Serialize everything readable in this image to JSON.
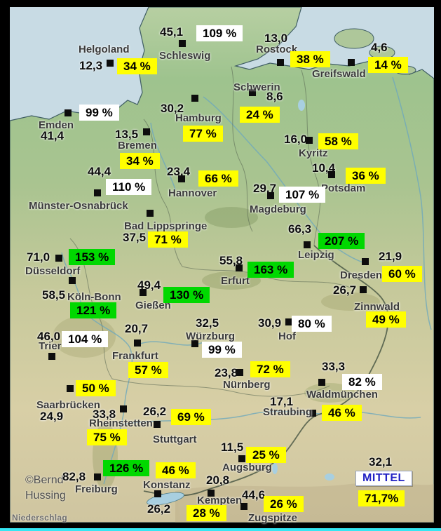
{
  "title_caption": "Niederschlag",
  "credits": {
    "line1": "©Bernd",
    "line2": "Hussing"
  },
  "summary": {
    "value": "32,1",
    "label": "MITTEL",
    "percent": "71,7%"
  },
  "colors": {
    "yellow": "#ffff00",
    "green": "#00d800",
    "white": "#ffffff"
  },
  "map_colors": {
    "sea": "#c8dbe4",
    "land_north": "#9dc18c",
    "land_south": "#d8cda6",
    "frame": "#000000",
    "bottom_strip": "#35e6f2"
  },
  "stations": [
    {
      "name": "Helgoland",
      "value": "12,3",
      "percent": "34 %",
      "color": "yellow",
      "pos": {
        "value": [
          113,
          84
        ],
        "marker": [
          152,
          85
        ],
        "label": [
          112,
          62
        ],
        "percent": [
          167,
          83
        ]
      }
    },
    {
      "name": "Schleswig",
      "value": "45,1",
      "percent": "109 %",
      "color": "white",
      "pos": {
        "value": [
          228,
          36
        ],
        "marker": [
          255,
          57
        ],
        "label": [
          227,
          71
        ],
        "percent": [
          280,
          36
        ]
      }
    },
    {
      "name": "Rostock",
      "value": "13,0",
      "percent": "38 %",
      "color": "yellow",
      "pos": {
        "value": [
          377,
          45
        ],
        "marker": [
          395,
          84
        ],
        "label": [
          365,
          62
        ],
        "percent": [
          414,
          73
        ]
      }
    },
    {
      "name": "Greifswald",
      "value": "4,6",
      "percent": "14 %",
      "color": "yellow",
      "pos": {
        "value": [
          529,
          58
        ],
        "marker": [
          496,
          84
        ],
        "label": [
          445,
          97
        ],
        "percent": [
          525,
          81
        ]
      }
    },
    {
      "name": "Schwerin",
      "value": "8,6",
      "percent": "24 %",
      "color": "yellow",
      "pos": {
        "value": [
          380,
          128
        ],
        "marker": [
          355,
          127
        ],
        "label": [
          333,
          116
        ],
        "percent": [
          342,
          152
        ]
      }
    },
    {
      "name": "Emden",
      "value": "41,4",
      "percent": "99 %",
      "color": "white",
      "pos": {
        "value": [
          58,
          184
        ],
        "marker": [
          92,
          156
        ],
        "label": [
          55,
          170
        ],
        "percent": [
          113,
          149
        ]
      }
    },
    {
      "name": "Hamburg",
      "value": "30,2",
      "percent": "77 %",
      "color": "yellow",
      "pos": {
        "value": [
          229,
          145
        ],
        "marker": [
          273,
          135
        ],
        "label": [
          250,
          160
        ],
        "percent": [
          261,
          179
        ]
      }
    },
    {
      "name": "Bremen",
      "value": "13,5",
      "percent": "34 %",
      "color": "yellow",
      "pos": {
        "value": [
          164,
          182
        ],
        "marker": [
          204,
          183
        ],
        "label": [
          168,
          199
        ],
        "percent": [
          171,
          218
        ]
      }
    },
    {
      "name": "Kyritz",
      "value": "16,0",
      "percent": "58 %",
      "color": "yellow",
      "pos": {
        "value": [
          405,
          189
        ],
        "marker": [
          436,
          195
        ],
        "label": [
          426,
          210
        ],
        "percent": [
          454,
          190
        ]
      }
    },
    {
      "name": "Münster-Osnabrück",
      "value": "44,4",
      "percent": "110 %",
      "color": "white",
      "pos": {
        "value": [
          125,
          235
        ],
        "marker": [
          134,
          270
        ],
        "label": [
          41,
          285
        ],
        "percent": [
          151,
          255
        ]
      }
    },
    {
      "name": "Hannover",
      "value": "23,4",
      "percent": "66 %",
      "color": "yellow",
      "pos": {
        "value": [
          238,
          235
        ],
        "marker": [
          254,
          250
        ],
        "label": [
          240,
          267
        ],
        "percent": [
          283,
          243
        ]
      }
    },
    {
      "name": "Potsdam",
      "value": "10,4",
      "percent": "36 %",
      "color": "yellow",
      "pos": {
        "value": [
          445,
          230
        ],
        "marker": [
          468,
          244
        ],
        "label": [
          458,
          260
        ],
        "percent": [
          493,
          239
        ]
      }
    },
    {
      "name": "Magdeburg",
      "value": "29,7",
      "percent": "107 %",
      "color": "white",
      "pos": {
        "value": [
          361,
          259
        ],
        "marker": [
          381,
          274
        ],
        "label": [
          356,
          290
        ],
        "percent": [
          398,
          266
        ]
      }
    },
    {
      "name": "Bad Lippspringe",
      "value": "37,5",
      "percent": "71 %",
      "color": "yellow",
      "pos": {
        "value": [
          175,
          329
        ],
        "marker": [
          209,
          299
        ],
        "label": [
          177,
          314
        ],
        "percent": [
          211,
          330
        ]
      }
    },
    {
      "name": "Leipzig",
      "value": "66,3",
      "percent": "207 %",
      "color": "green",
      "pos": {
        "value": [
          411,
          317
        ],
        "marker": [
          433,
          344
        ],
        "label": [
          425,
          355
        ],
        "percent": [
          454,
          332
        ]
      }
    },
    {
      "name": "Dresden",
      "value": "21,9",
      "percent": "60 %",
      "color": "yellow",
      "pos": {
        "value": [
          540,
          356
        ],
        "marker": [
          516,
          368
        ],
        "label": [
          485,
          384
        ],
        "percent": [
          545,
          379
        ]
      }
    },
    {
      "name": "Düsseldorf",
      "value": "71,0",
      "percent": "153 %",
      "color": "green",
      "pos": {
        "value": [
          38,
          357
        ],
        "marker": [
          79,
          363
        ],
        "label": [
          36,
          378
        ],
        "percent": [
          98,
          355
        ]
      }
    },
    {
      "name": "Erfurt",
      "value": "55,8",
      "percent": "163 %",
      "color": "green",
      "pos": {
        "value": [
          313,
          362
        ],
        "marker": [
          336,
          377
        ],
        "label": [
          315,
          392
        ],
        "percent": [
          353,
          373
        ]
      }
    },
    {
      "name": "Köln-Bonn",
      "value": "58,5",
      "percent": "121 %",
      "color": "green",
      "pos": {
        "value": [
          60,
          411
        ],
        "marker": [
          98,
          395
        ],
        "label": [
          96,
          415
        ],
        "percent": [
          100,
          431
        ]
      }
    },
    {
      "name": "Gießen",
      "value": "49,4",
      "percent": "130 %",
      "color": "green",
      "pos": {
        "value": [
          196,
          397
        ],
        "marker": [
          199,
          412
        ],
        "label": [
          193,
          427
        ],
        "percent": [
          233,
          409
        ]
      }
    },
    {
      "name": "Zinnwald",
      "value": "26,7",
      "percent": "49 %",
      "color": "yellow",
      "pos": {
        "value": [
          475,
          404
        ],
        "marker": [
          513,
          408
        ],
        "label": [
          505,
          429
        ],
        "percent": [
          522,
          444
        ]
      }
    },
    {
      "name": "Würzburg",
      "value": "32,5",
      "percent": "99 %",
      "color": "white",
      "pos": {
        "value": [
          279,
          451
        ],
        "marker": [
          273,
          485
        ],
        "label": [
          265,
          471
        ],
        "percent": [
          288,
          487
        ]
      }
    },
    {
      "name": "Hof",
      "value": "30,9",
      "percent": "80 %",
      "color": "white",
      "pos": {
        "value": [
          368,
          451
        ],
        "marker": [
          407,
          454
        ],
        "label": [
          397,
          471
        ],
        "percent": [
          416,
          450
        ]
      }
    },
    {
      "name": "Trier",
      "value": "46,0",
      "percent": "104 %",
      "color": "white",
      "pos": {
        "value": [
          53,
          470
        ],
        "marker": [
          69,
          503
        ],
        "label": [
          55,
          485
        ],
        "percent": [
          88,
          472
        ]
      }
    },
    {
      "name": "Frankfurt",
      "value": "20,7",
      "percent": "57 %",
      "color": "yellow",
      "pos": {
        "value": [
          178,
          459
        ],
        "marker": [
          191,
          484
        ],
        "label": [
          160,
          499
        ],
        "percent": [
          183,
          516
        ]
      }
    },
    {
      "name": "Nürnberg",
      "value": "23,8",
      "percent": "72 %",
      "color": "yellow",
      "pos": {
        "value": [
          306,
          522
        ],
        "marker": [
          337,
          526
        ],
        "label": [
          318,
          540
        ],
        "percent": [
          357,
          515
        ]
      }
    },
    {
      "name": "Waldmünchen",
      "value": "33,3",
      "percent": "82 %",
      "color": "white",
      "pos": {
        "value": [
          459,
          513
        ],
        "marker": [
          454,
          540
        ],
        "label": [
          437,
          554
        ],
        "percent": [
          488,
          533
        ]
      }
    },
    {
      "name": "Saarbrücken",
      "value": "24,9",
      "percent": "50 %",
      "color": "yellow",
      "pos": {
        "value": [
          57,
          584
        ],
        "marker": [
          95,
          549
        ],
        "label": [
          52,
          569
        ],
        "percent": [
          108,
          542
        ]
      }
    },
    {
      "name": "Straubing",
      "value": "17,1",
      "percent": "46 %",
      "color": "yellow",
      "pos": {
        "value": [
          385,
          563
        ],
        "marker": [
          441,
          584
        ],
        "label": [
          375,
          579
        ],
        "percent": [
          459,
          577
        ]
      }
    },
    {
      "name": "Rheinstetten",
      "value": "33,8",
      "percent": "75 %",
      "color": "yellow",
      "pos": {
        "value": [
          132,
          581
        ],
        "marker": [
          171,
          578
        ],
        "label": [
          127,
          595
        ],
        "percent": [
          124,
          612
        ]
      }
    },
    {
      "name": "Stuttgart",
      "value": "26,2",
      "percent": "69 %",
      "color": "yellow",
      "pos": {
        "value": [
          204,
          577
        ],
        "marker": [
          219,
          600
        ],
        "label": [
          218,
          618
        ],
        "percent": [
          244,
          583
        ]
      }
    },
    {
      "name": "Augsburg",
      "value": "11,5",
      "percent": "25 %",
      "color": "yellow",
      "pos": {
        "value": [
          315,
          628
        ],
        "marker": [
          340,
          649
        ],
        "label": [
          317,
          658
        ],
        "percent": [
          351,
          637
        ]
      }
    },
    {
      "name": "Freiburg",
      "value": "82,8",
      "percent": "126 %",
      "color": "green",
      "pos": {
        "value": [
          89,
          670
        ],
        "marker": [
          134,
          675
        ],
        "label": [
          107,
          689
        ],
        "percent": [
          147,
          656
        ]
      }
    },
    {
      "name": "Konstanz",
      "value": "26,2",
      "percent": "46 %",
      "color": "yellow",
      "pos": {
        "value": [
          210,
          716
        ],
        "marker": [
          220,
          699
        ],
        "label": [
          204,
          683
        ],
        "percent": [
          222,
          659
        ]
      }
    },
    {
      "name": "Kempten",
      "value": "20,8",
      "percent": "28 %",
      "color": "yellow",
      "pos": {
        "value": [
          294,
          675
        ],
        "marker": [
          296,
          698
        ],
        "label": [
          281,
          705
        ],
        "percent": [
          266,
          720
        ]
      }
    },
    {
      "name": "Zugspitze",
      "value": "44,6",
      "percent": "26 %",
      "color": "yellow",
      "pos": {
        "value": [
          345,
          696
        ],
        "marker": [
          343,
          717
        ],
        "label": [
          354,
          730
        ],
        "percent": [
          376,
          707
        ]
      }
    }
  ]
}
